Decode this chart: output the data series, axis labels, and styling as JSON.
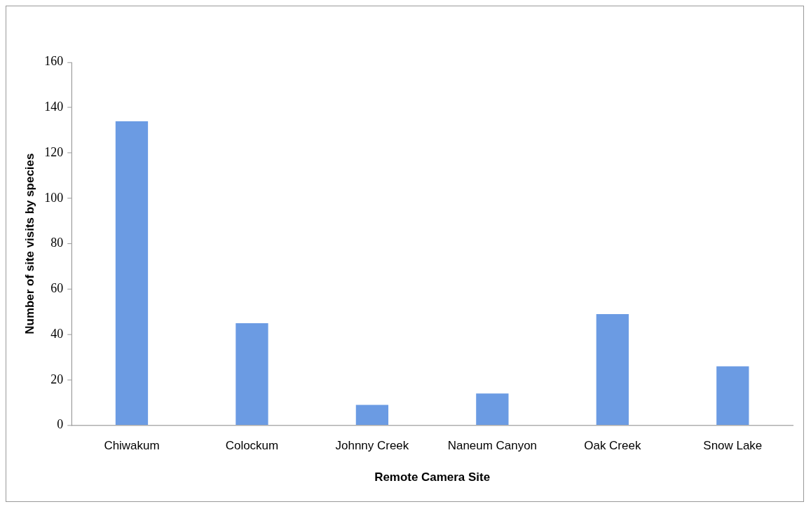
{
  "chart_data": {
    "type": "bar",
    "xlabel": "Remote Camera Site",
    "ylabel": "Number of site visits by species",
    "categories": [
      "Chiwakum",
      "Colockum",
      "Johnny Creek",
      "Naneum Canyon",
      "Oak Creek",
      "Snow Lake"
    ],
    "values": [
      134,
      45,
      9,
      14,
      49,
      26
    ],
    "color": "#6b9be3",
    "ylim": [
      0,
      160
    ],
    "yticks": [
      0,
      20,
      40,
      60,
      80,
      100,
      120,
      140,
      160
    ],
    "grid": false,
    "legend": false
  }
}
